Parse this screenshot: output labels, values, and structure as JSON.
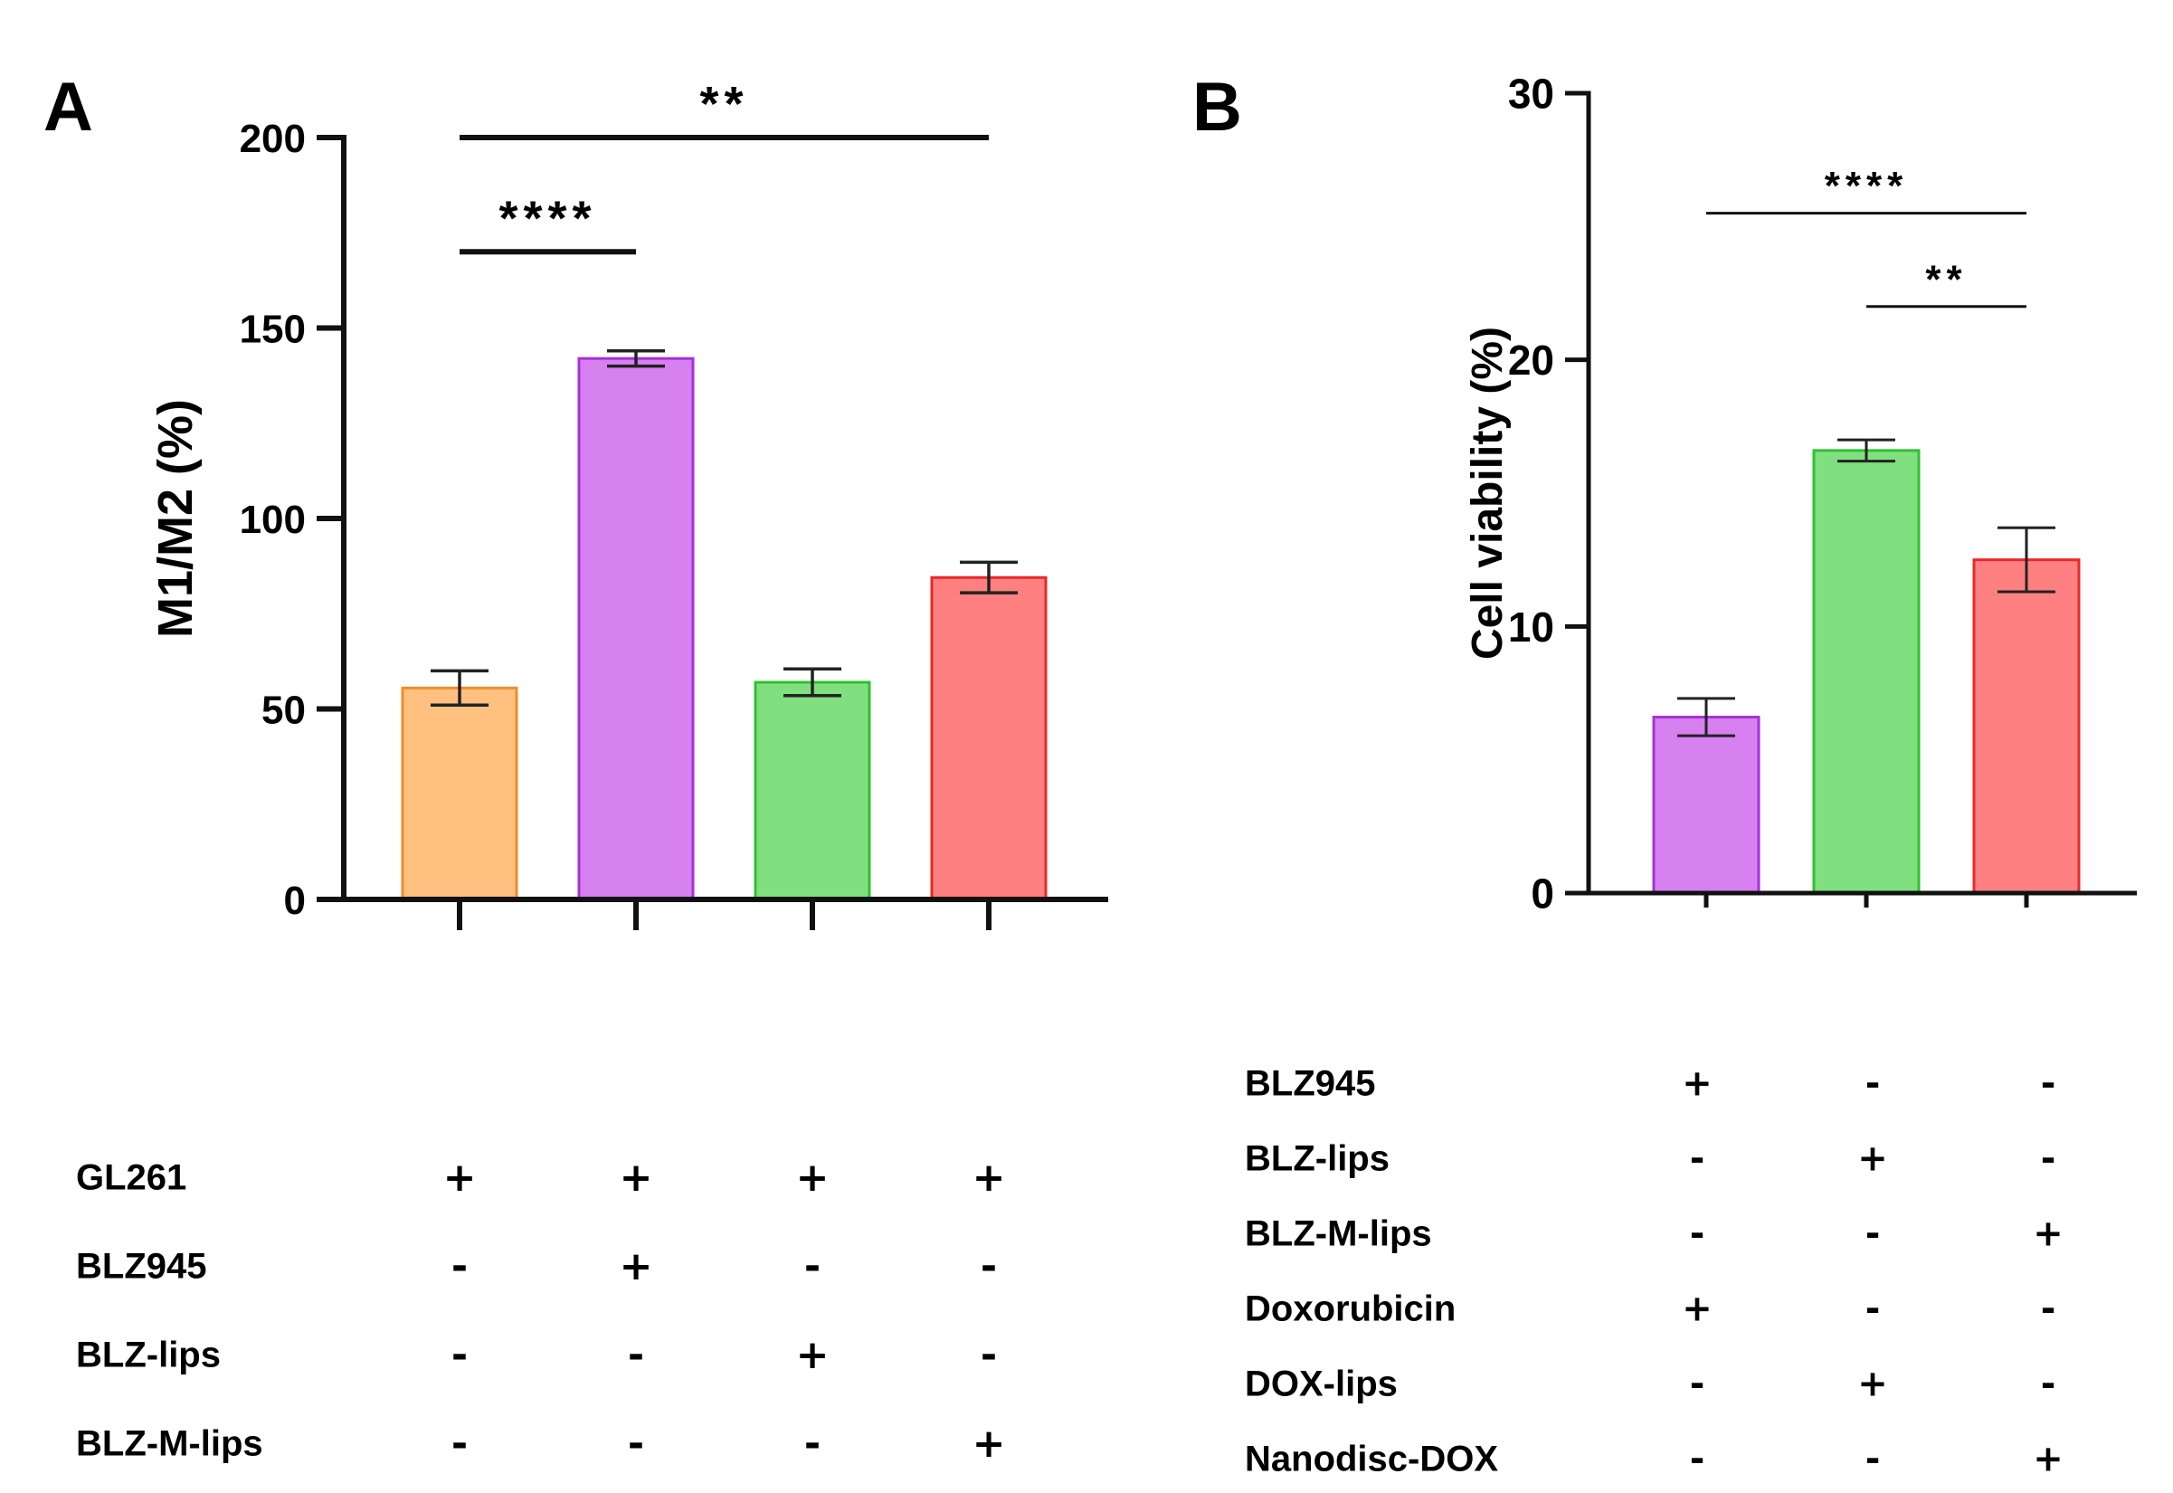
{
  "chart_data": [
    {
      "panel": "A",
      "type": "bar",
      "ylabel": "M1/M2 (%)",
      "ylim": [
        0,
        200
      ],
      "yticks": [
        0,
        50,
        100,
        150,
        200
      ],
      "ytick_labels": [
        "0",
        "50",
        "100",
        "150",
        "200"
      ],
      "values": [
        55.5,
        142,
        57,
        84.5
      ],
      "errors": [
        4.5,
        2,
        3.5,
        4
      ],
      "colors": [
        "#ffc080",
        "#d780f0",
        "#80e080",
        "#ff8080"
      ],
      "edge_colors": [
        "#ef8c2c",
        "#a830d8",
        "#30c030",
        "#e82828"
      ],
      "significance": [
        {
          "from": 0,
          "to": 1,
          "label": "****",
          "y": 170
        },
        {
          "from": 0,
          "to": 3,
          "label": "**",
          "y": 200
        }
      ],
      "condition_table": {
        "rows": [
          {
            "label": "GL261",
            "signs": [
              "+",
              "+",
              "+",
              "+"
            ]
          },
          {
            "label": "BLZ945",
            "signs": [
              "-",
              "+",
              "-",
              "-"
            ]
          },
          {
            "label": "BLZ-lips",
            "signs": [
              "-",
              "-",
              "+",
              "-"
            ]
          },
          {
            "label": "BLZ-M-lips",
            "signs": [
              "-",
              "-",
              "-",
              "+"
            ]
          }
        ]
      }
    },
    {
      "panel": "B",
      "type": "bar",
      "ylabel": "Cell viability (%)",
      "ylim": [
        0,
        30
      ],
      "yticks": [
        0,
        10,
        20,
        30
      ],
      "ytick_labels": [
        "0",
        "10",
        "20",
        "30"
      ],
      "values": [
        6.6,
        16.6,
        12.5
      ],
      "errors": [
        0.7,
        0.4,
        1.2
      ],
      "colors": [
        "#d780f0",
        "#80e080",
        "#ff8080"
      ],
      "edge_colors": [
        "#a830d8",
        "#30c030",
        "#e82828"
      ],
      "significance": [
        {
          "from": 0,
          "to": 2,
          "label": "****",
          "y": 25.5
        },
        {
          "from": 1,
          "to": 2,
          "label": "**",
          "y": 22
        }
      ],
      "condition_table": {
        "rows": [
          {
            "label": "BLZ945",
            "signs": [
              "+",
              "-",
              "-"
            ]
          },
          {
            "label": "BLZ-lips",
            "signs": [
              "-",
              "+",
              "-"
            ]
          },
          {
            "label": "BLZ-M-lips",
            "signs": [
              "-",
              "-",
              "+"
            ]
          },
          {
            "label": "Doxorubicin",
            "signs": [
              "+",
              "-",
              "-"
            ]
          },
          {
            "label": "DOX-lips",
            "signs": [
              "-",
              "+",
              "-"
            ]
          },
          {
            "label": "Nanodisc-DOX",
            "signs": [
              "-",
              "-",
              "+"
            ]
          }
        ]
      }
    }
  ]
}
